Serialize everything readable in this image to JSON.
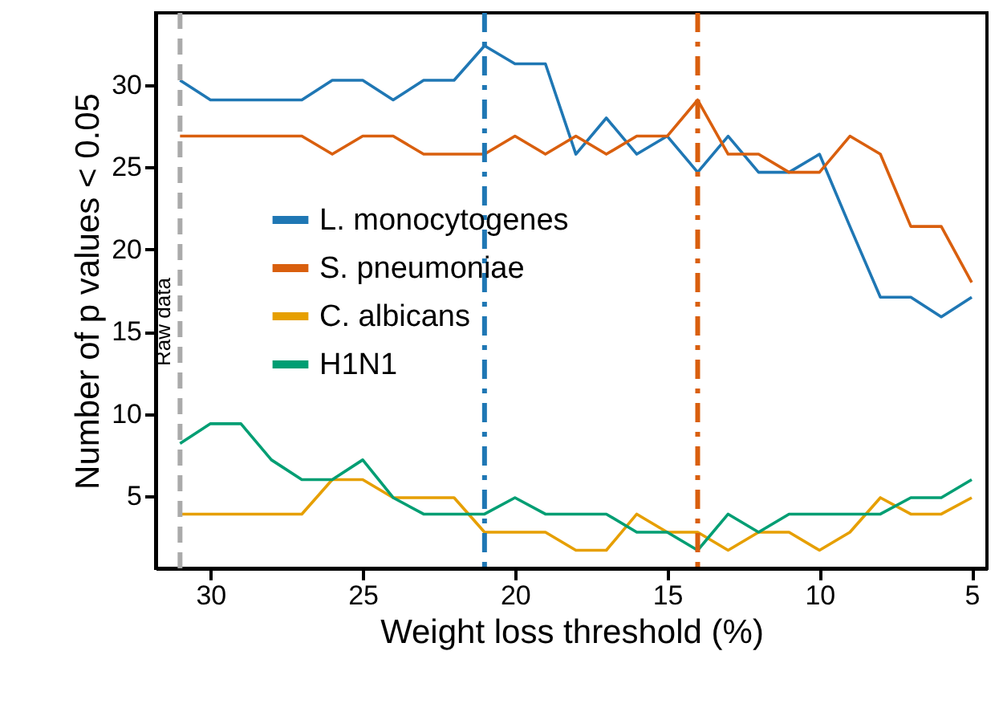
{
  "chart_data": {
    "type": "line",
    "xlabel": "Weight loss threshold (%)",
    "ylabel": "Number of p values < 0.05",
    "x": [
      31,
      30,
      29,
      28,
      27,
      26,
      25,
      24,
      23,
      22,
      21,
      20,
      19,
      18,
      17,
      16,
      15,
      14,
      13,
      12,
      11,
      10,
      9,
      8,
      7,
      6,
      5
    ],
    "series": [
      {
        "name": "L. monocytogenes",
        "color": "#1f77b4",
        "values": [
          30.3,
          29.1,
          29.1,
          29.1,
          29.1,
          30.3,
          30.3,
          29.1,
          30.3,
          30.3,
          32.4,
          31.3,
          31.3,
          25.8,
          28.0,
          25.8,
          26.9,
          24.7,
          26.9,
          24.7,
          24.7,
          25.8,
          21.4,
          17.1,
          17.1,
          15.9,
          17.1
        ]
      },
      {
        "name": "S. pneumoniae",
        "color": "#d95f0e",
        "values": [
          26.9,
          26.9,
          26.9,
          26.9,
          26.9,
          25.8,
          26.9,
          26.9,
          25.8,
          25.8,
          25.8,
          26.9,
          25.8,
          26.9,
          25.8,
          26.9,
          26.9,
          29.1,
          25.8,
          25.8,
          24.7,
          24.7,
          26.9,
          25.8,
          21.4,
          21.4,
          18.0
        ]
      },
      {
        "name": "C. albicans",
        "color": "#e69f00",
        "values": [
          3.9,
          3.9,
          3.9,
          3.9,
          3.9,
          6.0,
          6.0,
          4.9,
          4.9,
          4.9,
          2.8,
          2.8,
          2.8,
          1.7,
          1.7,
          3.9,
          2.8,
          2.8,
          1.7,
          2.8,
          2.8,
          1.7,
          2.8,
          4.9,
          3.9,
          3.9,
          4.9
        ]
      },
      {
        "name": "H1N1",
        "color": "#009e73",
        "values": [
          8.2,
          9.4,
          9.4,
          7.2,
          6.0,
          6.0,
          7.2,
          4.9,
          3.9,
          3.9,
          3.9,
          4.9,
          3.9,
          3.9,
          3.9,
          2.8,
          2.8,
          1.7,
          3.9,
          2.8,
          3.9,
          3.9,
          3.9,
          3.9,
          4.9,
          4.9,
          6.0
        ]
      }
    ],
    "xlim": [
      31.8,
      4.5
    ],
    "xticks": [
      30,
      25,
      20,
      15,
      10,
      5
    ],
    "ylim": [
      0.6,
      34.4
    ],
    "yticks": [
      5,
      10,
      15,
      20,
      25,
      30
    ],
    "ref_lines": [
      {
        "axis": "x",
        "value": 31,
        "label": "Raw data",
        "color": "#aaaaaa",
        "line_style": "dashed"
      },
      {
        "axis": "x",
        "value": 21,
        "label": null,
        "color": "#1f77b4",
        "line_style": "dashdot"
      },
      {
        "axis": "x",
        "value": 14,
        "label": null,
        "color": "#d95f0e",
        "line_style": "dashdot"
      }
    ],
    "legend": "left",
    "grid": false,
    "marker": "none",
    "line_style": "solid"
  }
}
